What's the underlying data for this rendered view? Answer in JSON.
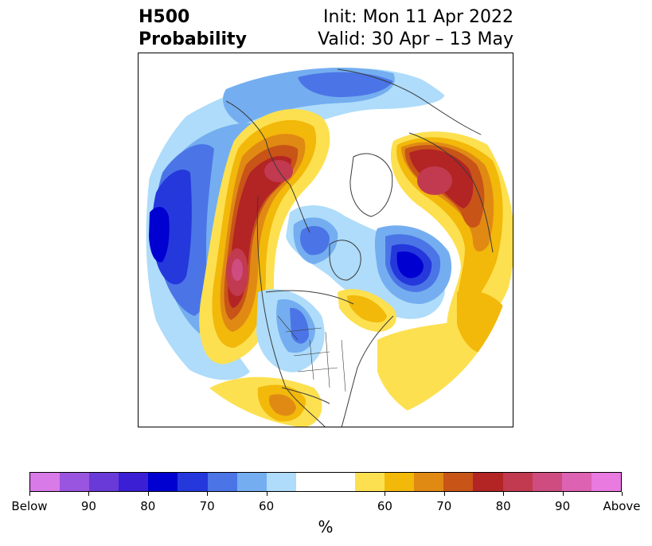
{
  "header": {
    "title_line1": "H500",
    "title_line2": "Probability",
    "init": "Init: Mon 11 Apr 2022",
    "valid": "Valid: 30 Apr – 13 May"
  },
  "colorbar": {
    "units": "%",
    "ticks": [
      "Below",
      "90",
      "80",
      "70",
      "60",
      "60",
      "70",
      "80",
      "90",
      "Above"
    ],
    "below_colors": [
      "#d87ae8",
      "#9a55e0",
      "#6a3ad8",
      "#3a1fd4",
      "#0000d0",
      "#2438dc",
      "#4b75e6",
      "#74aef0",
      "#aedcfa"
    ],
    "neutral_color": "#ffffff",
    "above_colors": [
      "#fde050",
      "#f2b80a",
      "#e08a14",
      "#c85418",
      "#b32424",
      "#c23a50",
      "#cf4c80",
      "#dd62b2",
      "#e87ae0"
    ]
  },
  "map": {
    "projection": "north-polar-stereographic",
    "features": [
      "coastlines",
      "country-borders",
      "us-state-borders"
    ]
  }
}
